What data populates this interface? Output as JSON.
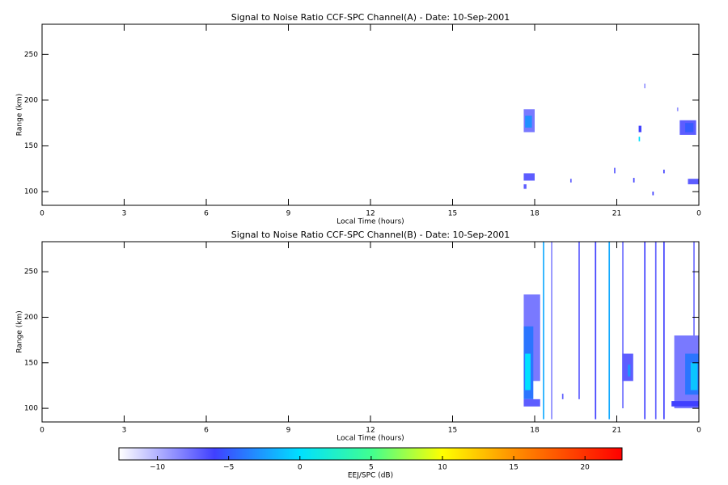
{
  "chart_data": [
    {
      "type": "heatmap",
      "title": "Signal to Noise Ratio CCF-SPC Channel(A) - Date: 10-Sep-2001",
      "xlabel": "Local Time (hours)",
      "ylabel": "Range (km)",
      "xlim": [
        0,
        24
      ],
      "xticks": [
        0,
        3,
        6,
        9,
        12,
        15,
        18,
        21,
        {
          "value": 24,
          "label": "0"
        }
      ],
      "ylim": [
        85,
        283
      ],
      "yticks": [
        100,
        150,
        200,
        250
      ],
      "clim": [
        -12.7,
        22.6
      ],
      "cells": [
        {
          "t0": 17.6,
          "t1": 18.0,
          "r0": 165,
          "r1": 190,
          "v": -8
        },
        {
          "t0": 17.65,
          "t1": 17.9,
          "r0": 170,
          "r1": 183,
          "v": -3
        },
        {
          "t0": 17.6,
          "t1": 18.0,
          "r0": 112,
          "r1": 120,
          "v": -7
        },
        {
          "t0": 17.6,
          "t1": 17.7,
          "r0": 103,
          "r1": 108,
          "v": -7
        },
        {
          "t0": 21.8,
          "t1": 21.9,
          "r0": 165,
          "r1": 172,
          "v": -6
        },
        {
          "t0": 21.8,
          "t1": 21.85,
          "r0": 155,
          "r1": 160,
          "v": 0
        },
        {
          "t0": 23.3,
          "t1": 23.9,
          "r0": 162,
          "r1": 178,
          "v": -7
        },
        {
          "t0": 23.5,
          "t1": 23.8,
          "r0": 165,
          "r1": 175,
          "v": -5
        },
        {
          "t0": 23.6,
          "t1": 24.0,
          "r0": 108,
          "r1": 114,
          "v": -7
        },
        {
          "t0": 20.9,
          "t1": 20.95,
          "r0": 120,
          "r1": 126,
          "v": -7
        },
        {
          "t0": 21.6,
          "t1": 21.65,
          "r0": 110,
          "r1": 115,
          "v": -6
        },
        {
          "t0": 22.3,
          "t1": 22.35,
          "r0": 96,
          "r1": 100,
          "v": -6
        },
        {
          "t0": 19.3,
          "t1": 19.35,
          "r0": 110,
          "r1": 114,
          "v": -7
        },
        {
          "t0": 23.2,
          "t1": 23.25,
          "r0": 188,
          "r1": 192,
          "v": -9
        },
        {
          "t0": 22.0,
          "t1": 22.05,
          "r0": 213,
          "r1": 218,
          "v": -9
        },
        {
          "t0": 22.7,
          "t1": 22.75,
          "r0": 120,
          "r1": 124,
          "v": -6
        }
      ]
    },
    {
      "type": "heatmap",
      "title": "Signal to Noise Ratio CCF-SPC Channel(B) - Date: 10-Sep-2001",
      "xlabel": "Local Time (hours)",
      "ylabel": "Range (km)",
      "xlim": [
        0,
        24
      ],
      "xticks": [
        0,
        3,
        6,
        9,
        12,
        15,
        18,
        21,
        {
          "value": 24,
          "label": "0"
        }
      ],
      "ylim": [
        85,
        283
      ],
      "yticks": [
        100,
        150,
        200,
        250
      ],
      "clim": [
        -12.7,
        22.6
      ],
      "cells": [
        {
          "t0": 17.6,
          "t1": 18.2,
          "r0": 130,
          "r1": 225,
          "v": -8
        },
        {
          "t0": 17.6,
          "t1": 17.95,
          "r0": 110,
          "r1": 190,
          "v": -4
        },
        {
          "t0": 17.65,
          "t1": 17.85,
          "r0": 120,
          "r1": 160,
          "v": 0
        },
        {
          "t0": 17.6,
          "t1": 18.2,
          "r0": 102,
          "r1": 110,
          "v": -7
        },
        {
          "t0": 18.3,
          "t1": 18.35,
          "r0": 88,
          "r1": 283,
          "v": -2
        },
        {
          "t0": 18.6,
          "t1": 18.63,
          "r0": 88,
          "r1": 283,
          "v": -8
        },
        {
          "t0": 19.6,
          "t1": 19.65,
          "r0": 110,
          "r1": 283,
          "v": -7
        },
        {
          "t0": 20.2,
          "t1": 20.25,
          "r0": 88,
          "r1": 283,
          "v": -6
        },
        {
          "t0": 20.7,
          "t1": 20.75,
          "r0": 88,
          "r1": 283,
          "v": -2
        },
        {
          "t0": 21.2,
          "t1": 21.23,
          "r0": 100,
          "r1": 283,
          "v": -7
        },
        {
          "t0": 22.0,
          "t1": 22.05,
          "r0": 88,
          "r1": 283,
          "v": -6
        },
        {
          "t0": 22.4,
          "t1": 22.45,
          "r0": 88,
          "r1": 283,
          "v": -7
        },
        {
          "t0": 22.7,
          "t1": 22.75,
          "r0": 88,
          "r1": 283,
          "v": -6
        },
        {
          "t0": 23.8,
          "t1": 23.83,
          "r0": 100,
          "r1": 283,
          "v": -7
        },
        {
          "t0": 21.2,
          "t1": 21.6,
          "r0": 130,
          "r1": 160,
          "v": -7
        },
        {
          "t0": 21.4,
          "t1": 21.5,
          "r0": 135,
          "r1": 148,
          "v": -3
        },
        {
          "t0": 23.1,
          "t1": 24.0,
          "r0": 100,
          "r1": 180,
          "v": -8
        },
        {
          "t0": 23.5,
          "t1": 24.0,
          "r0": 115,
          "r1": 160,
          "v": -4
        },
        {
          "t0": 23.7,
          "t1": 23.95,
          "r0": 120,
          "r1": 150,
          "v": -1
        },
        {
          "t0": 23.0,
          "t1": 24.0,
          "r0": 102,
          "r1": 108,
          "v": -6
        },
        {
          "t0": 19.0,
          "t1": 19.05,
          "r0": 110,
          "r1": 116,
          "v": -7
        }
      ]
    },
    {
      "type": "colorbar",
      "xlabel": "EEJ/SPC (dB)",
      "xlim": [
        -12.7,
        22.6
      ],
      "xticks": [
        {
          "value": -10,
          "label": "−10"
        },
        {
          "value": -5,
          "label": "−5"
        },
        0,
        5,
        10,
        15,
        20
      ],
      "colormap": [
        {
          "value": -12.7,
          "color": "#ffffff"
        },
        {
          "value": -6,
          "color": "#4040ff"
        },
        {
          "value": 0,
          "color": "#00e0ff"
        },
        {
          "value": 5,
          "color": "#40ff90"
        },
        {
          "value": 10,
          "color": "#ffff00"
        },
        {
          "value": 15,
          "color": "#ff9000"
        },
        {
          "value": 22.6,
          "color": "#ff0000"
        }
      ]
    }
  ]
}
